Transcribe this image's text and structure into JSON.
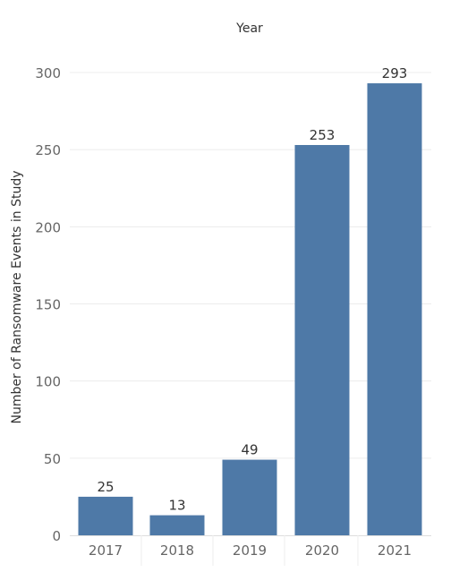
{
  "chart_data": {
    "type": "bar",
    "header": "Year",
    "categories": [
      "2017",
      "2018",
      "2019",
      "2020",
      "2021"
    ],
    "values": [
      25,
      13,
      49,
      253,
      293
    ],
    "data_labels": [
      "25",
      "13",
      "49",
      "253",
      "293"
    ],
    "title": "",
    "xlabel": "",
    "ylabel": "Number of Ransomware Events in Study",
    "ylim": [
      0,
      320
    ],
    "yticks": [
      0,
      50,
      100,
      150,
      200,
      250,
      300
    ],
    "ytick_labels": [
      "0",
      "50",
      "100",
      "150",
      "200",
      "250",
      "300"
    ],
    "grid": true,
    "legend": "none",
    "bar_color": "#4e79a7"
  }
}
